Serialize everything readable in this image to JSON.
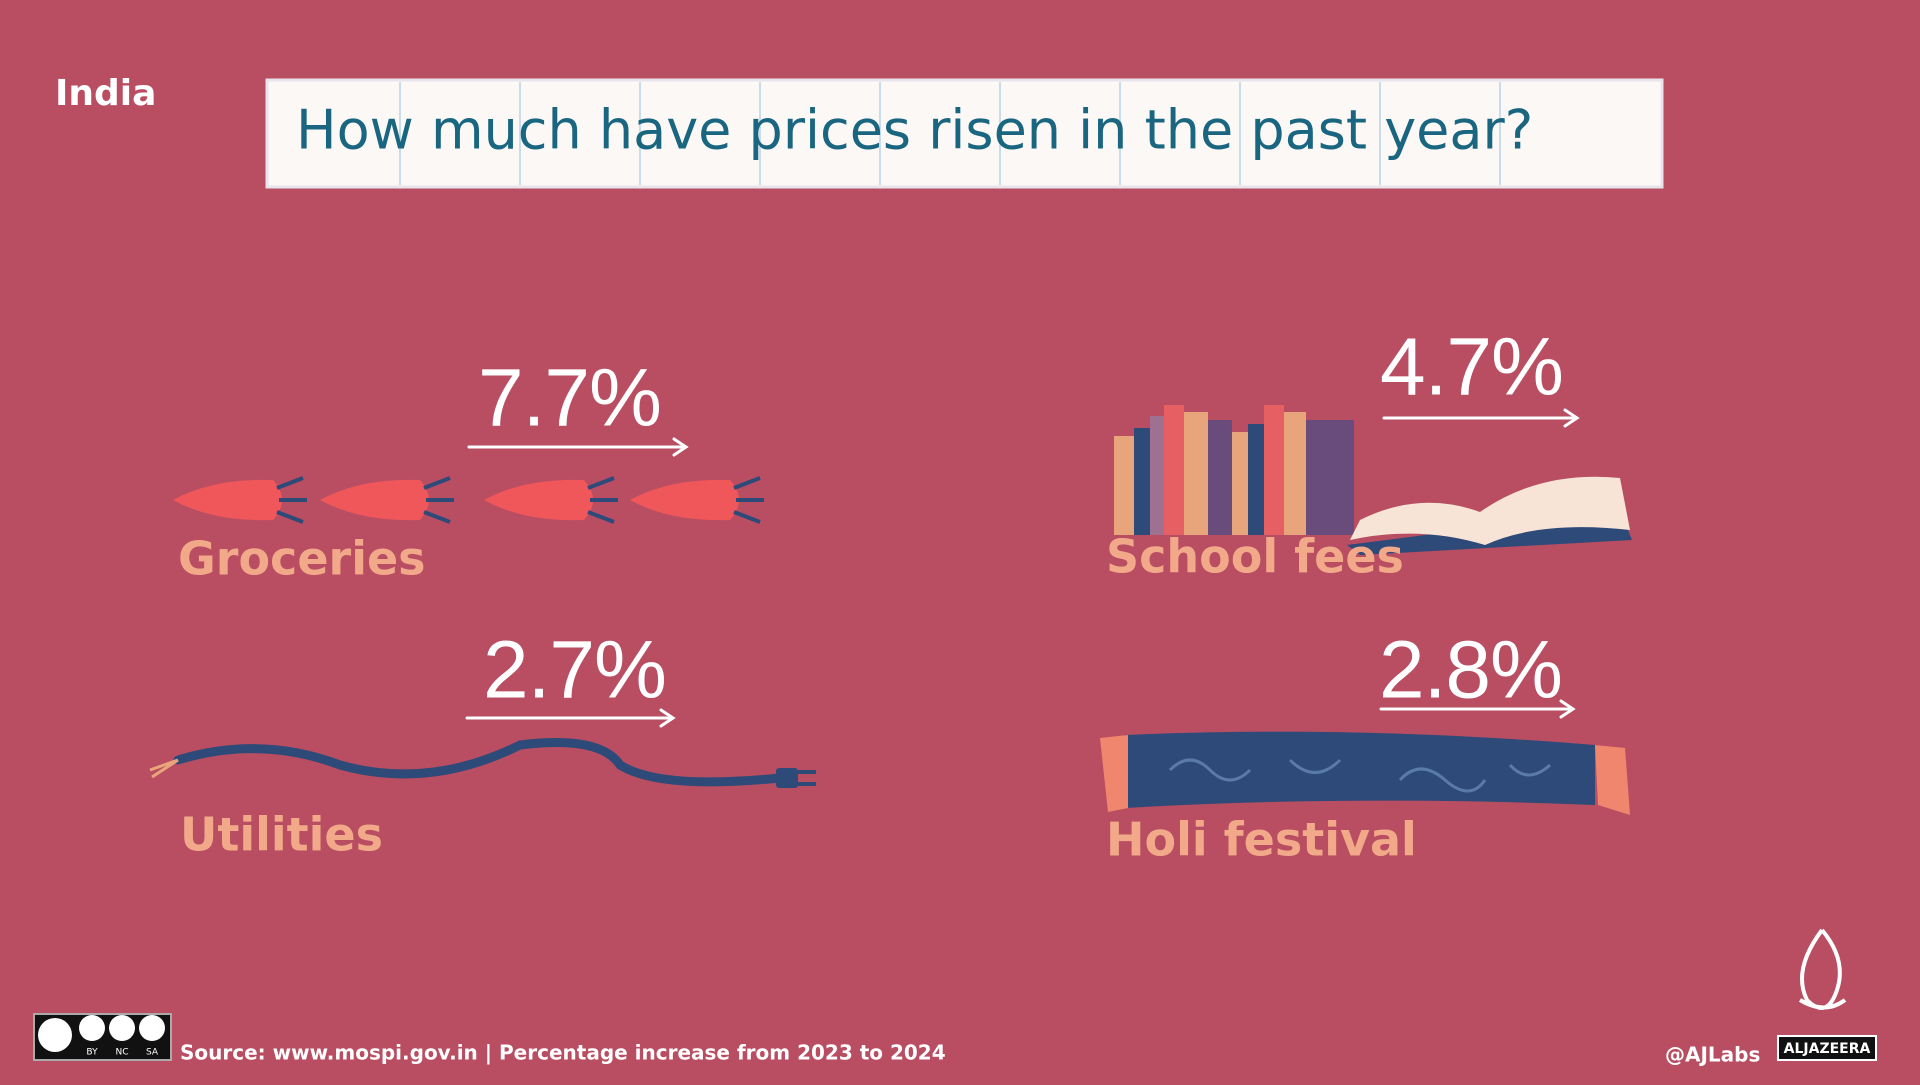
{
  "region": "India",
  "title": "How much have prices risen in the past year?",
  "items": [
    {
      "label": "Groceries",
      "value": "7.7%"
    },
    {
      "label": "School fees",
      "value": "4.7%"
    },
    {
      "label": "Utilities",
      "value": "2.7%"
    },
    {
      "label": "Holi festival",
      "value": "2.8%"
    }
  ],
  "footer": {
    "source": "Source: www.mospi.gov.in | Percentage increase from 2023 to 2024",
    "handle": "@AJLabs",
    "logo": "ALJAZEERA",
    "license": [
      "BY",
      "NC",
      "SA"
    ]
  }
}
